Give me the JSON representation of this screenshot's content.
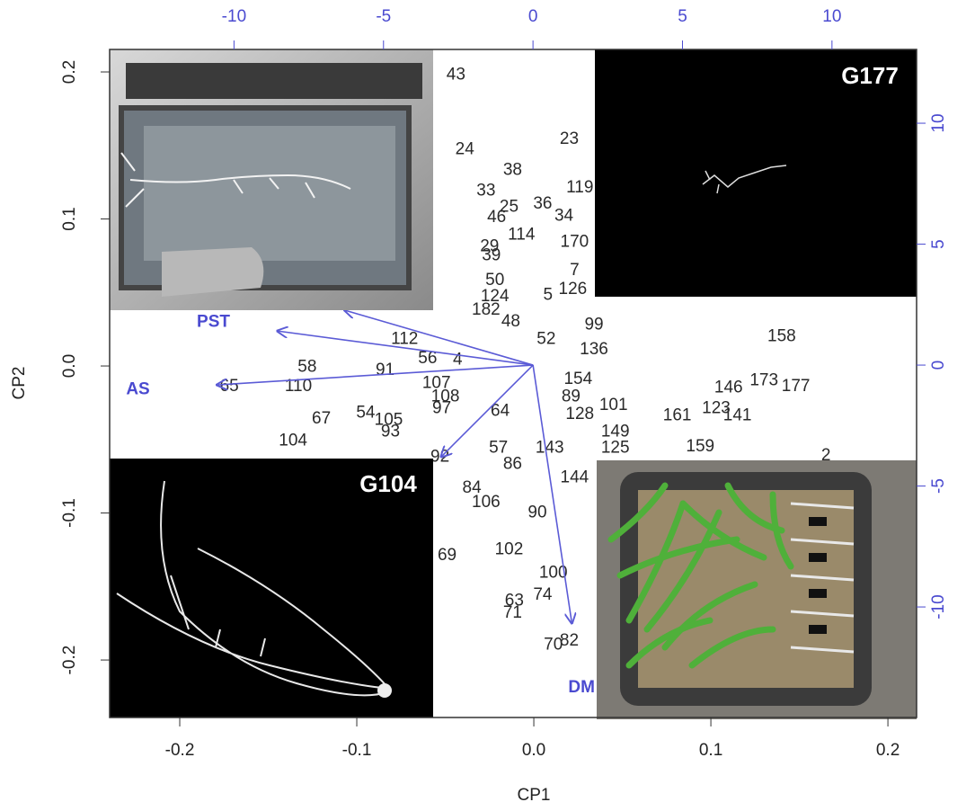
{
  "chart_data": {
    "type": "biplot",
    "xlabel": "CP1",
    "ylabel": "CP2",
    "xlim": [
      -0.2396,
      0.2162
    ],
    "ylim": [
      -0.2391,
      0.2153
    ],
    "xticks": [
      -0.2,
      -0.1,
      {
        "value": 0,
        "label": "0.0"
      },
      0.1,
      0.2
    ],
    "yticks": [
      -0.2,
      -0.1,
      {
        "value": 0,
        "label": "0.0"
      },
      0.1,
      0.2
    ],
    "x2lim": [
      -14.16,
      12.83
    ],
    "y2lim": [
      -14.57,
      13.05
    ],
    "x2ticks": [
      -10,
      -5,
      0,
      5,
      10
    ],
    "y2ticks": [
      -10,
      -5,
      0,
      5,
      10
    ],
    "points": {
      "color": "#2a2a2a",
      "labels": [
        "43",
        "23",
        "24",
        "38",
        "33",
        "119",
        "25",
        "36",
        "46",
        "34",
        "114",
        "170",
        "29",
        "39",
        "7",
        "50",
        "124",
        "5",
        "126",
        "182",
        "48",
        "99",
        "158",
        "112",
        "52",
        "136",
        "56",
        "4",
        "58",
        "91",
        "110",
        "65",
        "107",
        "154",
        "89",
        "173",
        "177",
        "146",
        "108",
        "97",
        "64",
        "101",
        "128",
        "161",
        "123",
        "141",
        "67",
        "54",
        "105",
        "93",
        "104",
        "149",
        "125",
        "159",
        "57",
        "143",
        "92",
        "2",
        "86",
        "144",
        "84",
        "106",
        "90",
        "102",
        "69",
        "100",
        "74",
        "63",
        "71",
        "70",
        "82"
      ],
      "x": [
        -0.044,
        0.02,
        -0.039,
        -0.012,
        -0.027,
        0.026,
        -0.014,
        0.005,
        -0.021,
        0.017,
        -0.007,
        0.023,
        -0.025,
        -0.024,
        0.023,
        -0.022,
        -0.022,
        0.008,
        0.022,
        -0.027,
        -0.013,
        0.034,
        0.14,
        -0.073,
        0.007,
        0.034,
        -0.06,
        -0.043,
        -0.128,
        -0.084,
        -0.133,
        -0.172,
        -0.055,
        0.025,
        0.021,
        0.13,
        0.148,
        0.11,
        -0.05,
        -0.052,
        -0.019,
        0.045,
        0.026,
        0.081,
        0.103,
        0.115,
        -0.12,
        -0.095,
        -0.082,
        -0.081,
        -0.136,
        0.046,
        0.046,
        0.094,
        -0.02,
        0.009,
        -0.053,
        0.165,
        -0.012,
        0.023,
        -0.035,
        -0.027,
        0.002,
        -0.014,
        -0.049,
        0.011,
        0.005,
        -0.011,
        -0.012,
        0.011,
        0.02
      ],
      "y": [
        0.198,
        0.154,
        0.147,
        0.133,
        0.119,
        0.121,
        0.108,
        0.11,
        0.101,
        0.102,
        0.089,
        0.084,
        0.081,
        0.075,
        0.065,
        0.058,
        0.047,
        0.048,
        0.052,
        0.038,
        0.03,
        0.028,
        0.02,
        0.018,
        0.018,
        0.011,
        0.005,
        0.004,
        -0.001,
        -0.003,
        -0.014,
        -0.014,
        -0.012,
        -0.009,
        -0.021,
        -0.01,
        -0.014,
        -0.015,
        -0.021,
        -0.029,
        -0.031,
        -0.027,
        -0.033,
        -0.034,
        -0.029,
        -0.034,
        -0.036,
        -0.032,
        -0.037,
        -0.045,
        -0.051,
        -0.045,
        -0.056,
        -0.055,
        -0.056,
        -0.056,
        -0.062,
        -0.061,
        -0.067,
        -0.076,
        -0.083,
        -0.093,
        -0.1,
        -0.125,
        -0.129,
        -0.141,
        -0.156,
        -0.16,
        -0.168,
        -0.19,
        -0.187
      ]
    },
    "arrows": {
      "color": "#5b5bd6",
      "names": [
        "PST",
        "AS",
        "DM",
        null,
        null
      ],
      "x": [
        -8.55,
        -10.57,
        1.3,
        -6.3,
        -3.07
      ],
      "y": [
        1.41,
        -0.82,
        -10.67,
        2.27,
        -3.79
      ]
    },
    "annotations": [
      "G177",
      "G104"
    ]
  }
}
